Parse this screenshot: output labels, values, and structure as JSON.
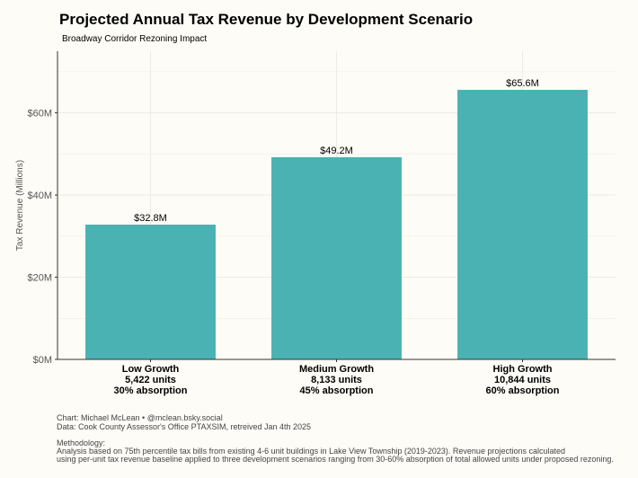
{
  "chart_data": {
    "type": "bar",
    "title": "Projected Annual Tax Revenue by Development Scenario",
    "subtitle": "Broadway Corridor Rezoning Impact",
    "ylabel": "Tax Revenue (Millions)",
    "xlabel": "",
    "ylim": [
      0,
      75
    ],
    "yticks": [
      0,
      20,
      40,
      60
    ],
    "ytick_labels": [
      "$0M",
      "$20M",
      "$40M",
      "$60M"
    ],
    "categories": [
      [
        "Low Growth",
        "5,422 units",
        "30% absorption"
      ],
      [
        "Medium Growth",
        "8,133 units",
        "45% absorption"
      ],
      [
        "High Growth",
        "10,844 units",
        "60% absorption"
      ]
    ],
    "values": [
      32.8,
      49.2,
      65.6
    ],
    "value_labels": [
      "$32.8M",
      "$49.2M",
      "$65.6M"
    ],
    "bar_color": "#4ab2b2",
    "grid": true,
    "legend": "none"
  },
  "captions": {
    "credit": "Chart: Michael McLean • @mclean.bsky.social",
    "data": "Data: Cook County Assessor's Office PTAXSIM, retreived Jan 4th 2025",
    "methodology_label": "Methodology:",
    "methodology_line1": "Analysis based on 75th percentile tax bills from existing 4-6 unit buildings in Lake View Township (2019-2023). Revenue projections calculated",
    "methodology_line2": "using per-unit tax revenue baseline applied to three development scenarios ranging from 30-60% absorption of total allowed units under proposed rezoning."
  }
}
